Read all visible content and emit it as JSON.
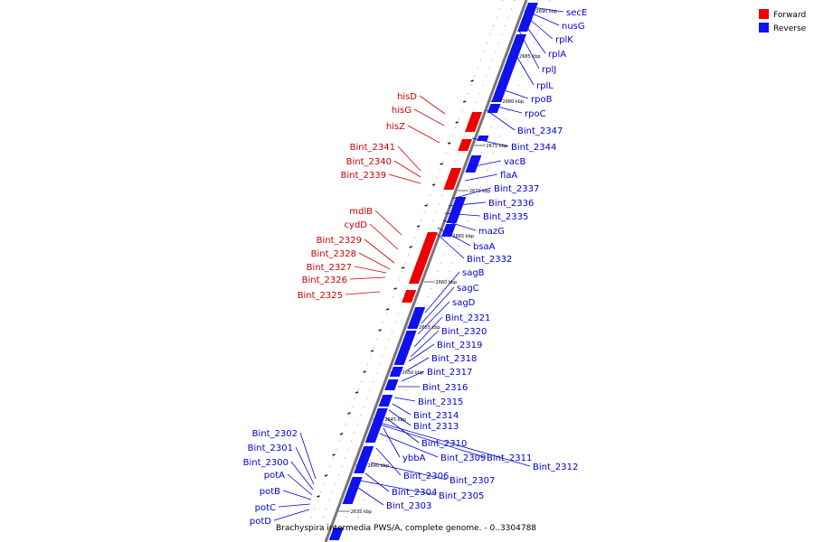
{
  "legend": [
    {
      "label": "Forward",
      "color": "#ee0000"
    },
    {
      "label": "Reverse",
      "color": "#1111ee"
    }
  ],
  "caption": "Brachyspira intermedia PWS/A, complete genome. - 0..3304788",
  "ticks": [
    "2690 kbp",
    "2685 kbp",
    "2680 kbp",
    "2675 kbp",
    "2670 kbp",
    "2665 kbp",
    "2660 kbp",
    "2655 kbp",
    "2650 kbp",
    "2645 kbp",
    "2640 kbp",
    "2635 kbp"
  ],
  "forward_genes": [
    "hisD",
    "hisG",
    "hisZ",
    "Bint_2341",
    "Bint_2340",
    "Bint_2339",
    "mdlB",
    "cydD",
    "Bint_2329",
    "Bint_2328",
    "Bint_2327",
    "Bint_2326",
    "Bint_2325"
  ],
  "reverse_genes_right": [
    "secE",
    "nusG",
    "rplK",
    "rplA",
    "rplJ",
    "rplL",
    "rpoB",
    "rpoC",
    "Bint_2347",
    "Bint_2344",
    "vacB",
    "flaA",
    "Bint_2337",
    "Bint_2336",
    "Bint_2335",
    "mazG",
    "bsaA",
    "Bint_2332",
    "sagB",
    "sagC",
    "sagD",
    "Bint_2321",
    "Bint_2320",
    "Bint_2319",
    "Bint_2318",
    "Bint_2317",
    "Bint_2316",
    "Bint_2315",
    "Bint_2314",
    "Bint_2313",
    "Bint_2310",
    "ybbA",
    "Bint_2309",
    "Bint_2311",
    "Bint_2312",
    "Bint_2306",
    "Bint_2307",
    "Bint_2304",
    "Bint_2305",
    "Bint_2303"
  ],
  "reverse_genes_left": [
    "Bint_2302",
    "Bint_2301",
    "Bint_2300",
    "potA",
    "potB",
    "potC",
    "potD"
  ]
}
